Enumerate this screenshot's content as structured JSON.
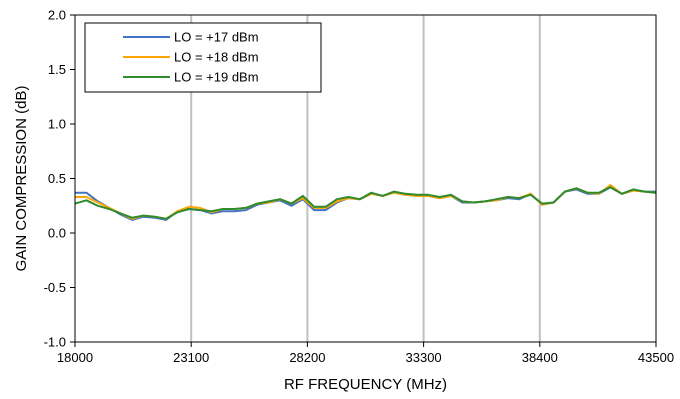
{
  "chart_data": {
    "type": "line",
    "title": "",
    "xlabel": "RF FREQUENCY (MHz)",
    "ylabel": "GAIN COMPRESSION (dB)",
    "xlim": [
      18000,
      43500
    ],
    "ylim": [
      -1.0,
      2.0
    ],
    "xticks": [
      18000,
      23100,
      28200,
      33300,
      38400,
      43500
    ],
    "yticks": [
      -1.0,
      -0.5,
      0.0,
      0.5,
      1.0,
      1.5,
      2.0
    ],
    "xtick_labels": [
      "18000",
      "23100",
      "28200",
      "33300",
      "38400",
      "43500"
    ],
    "ytick_labels": [
      "-1.0",
      "-0.5",
      "0.0",
      "0.5",
      "1.0",
      "1.5",
      "2.0"
    ],
    "grid": "vertical",
    "legend_position": "top-left",
    "x": [
      18000,
      18500,
      19000,
      19500,
      20000,
      20500,
      21000,
      21500,
      22000,
      22500,
      23000,
      23500,
      24000,
      24500,
      25000,
      25500,
      26000,
      26500,
      27000,
      27500,
      28000,
      28500,
      29000,
      29500,
      30000,
      30500,
      31000,
      31500,
      32000,
      32500,
      33000,
      33500,
      34000,
      34500,
      35000,
      35500,
      36000,
      36500,
      37000,
      37500,
      38000,
      38500,
      39000,
      39500,
      40000,
      40500,
      41000,
      41500,
      42000,
      42500,
      43000,
      43500
    ],
    "series": [
      {
        "name": "LO = +17 dBm",
        "color": "#4472C4",
        "values": [
          0.37,
          0.37,
          0.29,
          0.23,
          0.17,
          0.12,
          0.15,
          0.14,
          0.12,
          0.2,
          0.22,
          0.21,
          0.18,
          0.2,
          0.2,
          0.21,
          0.26,
          0.28,
          0.3,
          0.25,
          0.31,
          0.21,
          0.21,
          0.28,
          0.32,
          0.31,
          0.36,
          0.34,
          0.37,
          0.35,
          0.34,
          0.34,
          0.32,
          0.34,
          0.28,
          0.28,
          0.29,
          0.3,
          0.32,
          0.31,
          0.36,
          0.26,
          0.28,
          0.38,
          0.4,
          0.36,
          0.36,
          0.42,
          0.36,
          0.39,
          0.38,
          0.38
        ]
      },
      {
        "name": "LO = +18 dBm",
        "color": "#FFA500",
        "values": [
          0.33,
          0.33,
          0.28,
          0.23,
          0.18,
          0.13,
          0.16,
          0.15,
          0.13,
          0.2,
          0.24,
          0.23,
          0.19,
          0.22,
          0.22,
          0.23,
          0.27,
          0.28,
          0.31,
          0.27,
          0.32,
          0.23,
          0.23,
          0.29,
          0.32,
          0.31,
          0.36,
          0.34,
          0.37,
          0.35,
          0.34,
          0.34,
          0.32,
          0.34,
          0.29,
          0.28,
          0.29,
          0.3,
          0.33,
          0.32,
          0.36,
          0.26,
          0.28,
          0.38,
          0.41,
          0.37,
          0.36,
          0.44,
          0.36,
          0.39,
          0.38,
          0.37
        ]
      },
      {
        "name": "LO = +19 dBm",
        "color": "#2E8B2E",
        "values": [
          0.27,
          0.3,
          0.25,
          0.22,
          0.18,
          0.14,
          0.16,
          0.15,
          0.13,
          0.19,
          0.22,
          0.21,
          0.2,
          0.22,
          0.22,
          0.23,
          0.27,
          0.29,
          0.31,
          0.27,
          0.34,
          0.24,
          0.24,
          0.31,
          0.33,
          0.31,
          0.37,
          0.34,
          0.38,
          0.36,
          0.35,
          0.35,
          0.33,
          0.35,
          0.29,
          0.28,
          0.29,
          0.31,
          0.33,
          0.32,
          0.35,
          0.27,
          0.28,
          0.38,
          0.41,
          0.37,
          0.37,
          0.42,
          0.36,
          0.4,
          0.38,
          0.37
        ]
      }
    ]
  }
}
